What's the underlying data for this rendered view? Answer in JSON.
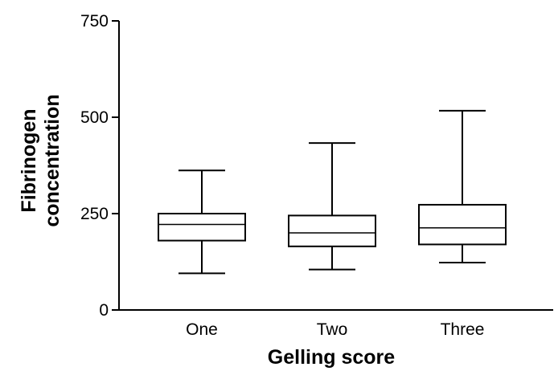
{
  "chart_data": {
    "type": "box",
    "title": "",
    "xlabel": "Gelling score",
    "ylabel": [
      "Fibrinogen",
      "concentration"
    ],
    "ylim": [
      0,
      750
    ],
    "yticks": [
      0,
      250,
      500,
      750
    ],
    "yticks_labels": [
      "0",
      "250",
      "500",
      "750"
    ],
    "categories": [
      "One",
      "Two",
      "Three"
    ],
    "boxes": [
      {
        "category": "One",
        "min": 95,
        "q1": 180,
        "median": 222,
        "q3": 250,
        "max": 362
      },
      {
        "category": "Two",
        "min": 105,
        "q1": 165,
        "median": 200,
        "q3": 245,
        "max": 433
      },
      {
        "category": "Three",
        "min": 123,
        "q1": 170,
        "median": 213,
        "q3": 273,
        "max": 517
      }
    ],
    "grid": false,
    "legend": "none",
    "colors": {
      "stroke": "#000000",
      "fill": "#ffffff"
    }
  }
}
